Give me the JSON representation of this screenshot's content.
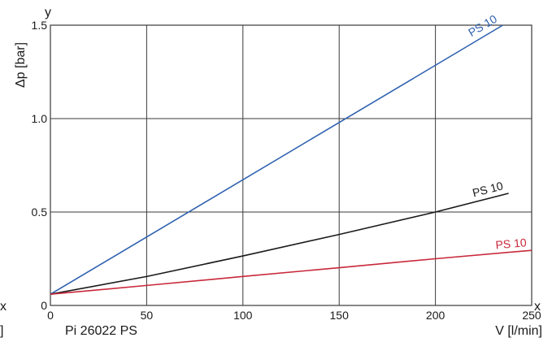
{
  "chart_data": {
    "type": "line",
    "xlim": [
      0,
      250
    ],
    "ylim": [
      0,
      1.5
    ],
    "grid": true,
    "x_ticks": [
      "0",
      "50",
      "100",
      "150",
      "200",
      "250"
    ],
    "y_ticks": [
      "0",
      "0.5",
      "1.0",
      "1.5"
    ],
    "y_axis_letter": "y",
    "x_axis_letter": "x",
    "ylabel": "Δp [bar]",
    "xlabel": "V [l/min]",
    "caption": "Pi 26022 PS",
    "edge_fragments": [
      "x",
      "]"
    ],
    "series": [
      {
        "name": "PS 10",
        "color": "#2f62b0",
        "x": [
          0,
          235
        ],
        "y": [
          0.06,
          1.5
        ]
      },
      {
        "name": "PS 10",
        "color": "#1a1a1a",
        "x": [
          0,
          50,
          100,
          150,
          200,
          238
        ],
        "y": [
          0.06,
          0.155,
          0.265,
          0.38,
          0.5,
          0.6
        ]
      },
      {
        "name": "PS 10",
        "color": "#c8283a",
        "x": [
          0,
          50,
          100,
          150,
          200,
          250
        ],
        "y": [
          0.06,
          0.107,
          0.155,
          0.202,
          0.25,
          0.295
        ]
      }
    ]
  }
}
